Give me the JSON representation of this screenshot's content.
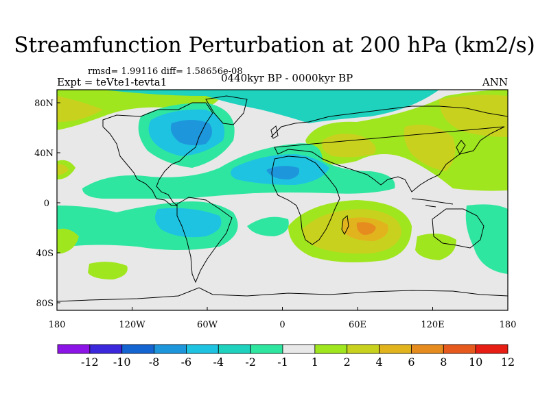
{
  "title": "Streamfunction Perturbation at 200 hPa (km2/s)",
  "stats": {
    "rmsd_label": "rmsd= 1.99116",
    "diff_label": "diff= 1.58656e-08"
  },
  "experiment": "Expt = teVte1-tevta1",
  "period": "0440kyr BP - 0000kyr BP",
  "season": "ANN",
  "lat_ticks": [
    "80N",
    "40N",
    "0",
    "40S",
    "80S"
  ],
  "lon_ticks": [
    "180",
    "120W",
    "60W",
    "0",
    "60E",
    "120E",
    "180"
  ],
  "colorbar": {
    "labels": [
      "-12",
      "-10",
      "-8",
      "-6",
      "-4",
      "-2",
      "-1",
      "1",
      "2",
      "4",
      "6",
      "8",
      "10",
      "12"
    ],
    "colors": [
      "#8c14e6",
      "#3c28dc",
      "#1464d2",
      "#1e96dc",
      "#1ec3e1",
      "#1ed2be",
      "#2fe6a0",
      "#e8e8e8",
      "#a0e61e",
      "#c8d21e",
      "#e1b41e",
      "#e68c1e",
      "#e65a1e",
      "#e61e14"
    ]
  },
  "fields": {
    "background": "#e8e8e8",
    "blobs": [
      {
        "region": "north-america-east",
        "color": "#2fe6a0",
        "level": "-1"
      },
      {
        "region": "north-america-east",
        "color": "#1ed2be",
        "level": "-2"
      },
      {
        "region": "north-america-east",
        "color": "#1ec3e1",
        "level": "-4"
      },
      {
        "region": "north-america-east",
        "color": "#1e96dc",
        "level": "-6"
      },
      {
        "region": "north-atlantic-africa",
        "color": "#1ed2be",
        "level": "-2"
      },
      {
        "region": "north-africa",
        "color": "#1e96dc",
        "level": "-6"
      },
      {
        "region": "central-asia",
        "color": "#a0e61e",
        "level": "2"
      },
      {
        "region": "central-asia",
        "color": "#c8d21e",
        "level": "4"
      },
      {
        "region": "south-indian-ocean",
        "color": "#c8d21e",
        "level": "4"
      },
      {
        "region": "south-indian-ocean",
        "color": "#e68c1e",
        "level": "8"
      },
      {
        "region": "south-pacific",
        "color": "#2fe6a0",
        "level": "-1"
      },
      {
        "region": "south-pacific",
        "color": "#1ed2be",
        "level": "-2"
      }
    ]
  }
}
